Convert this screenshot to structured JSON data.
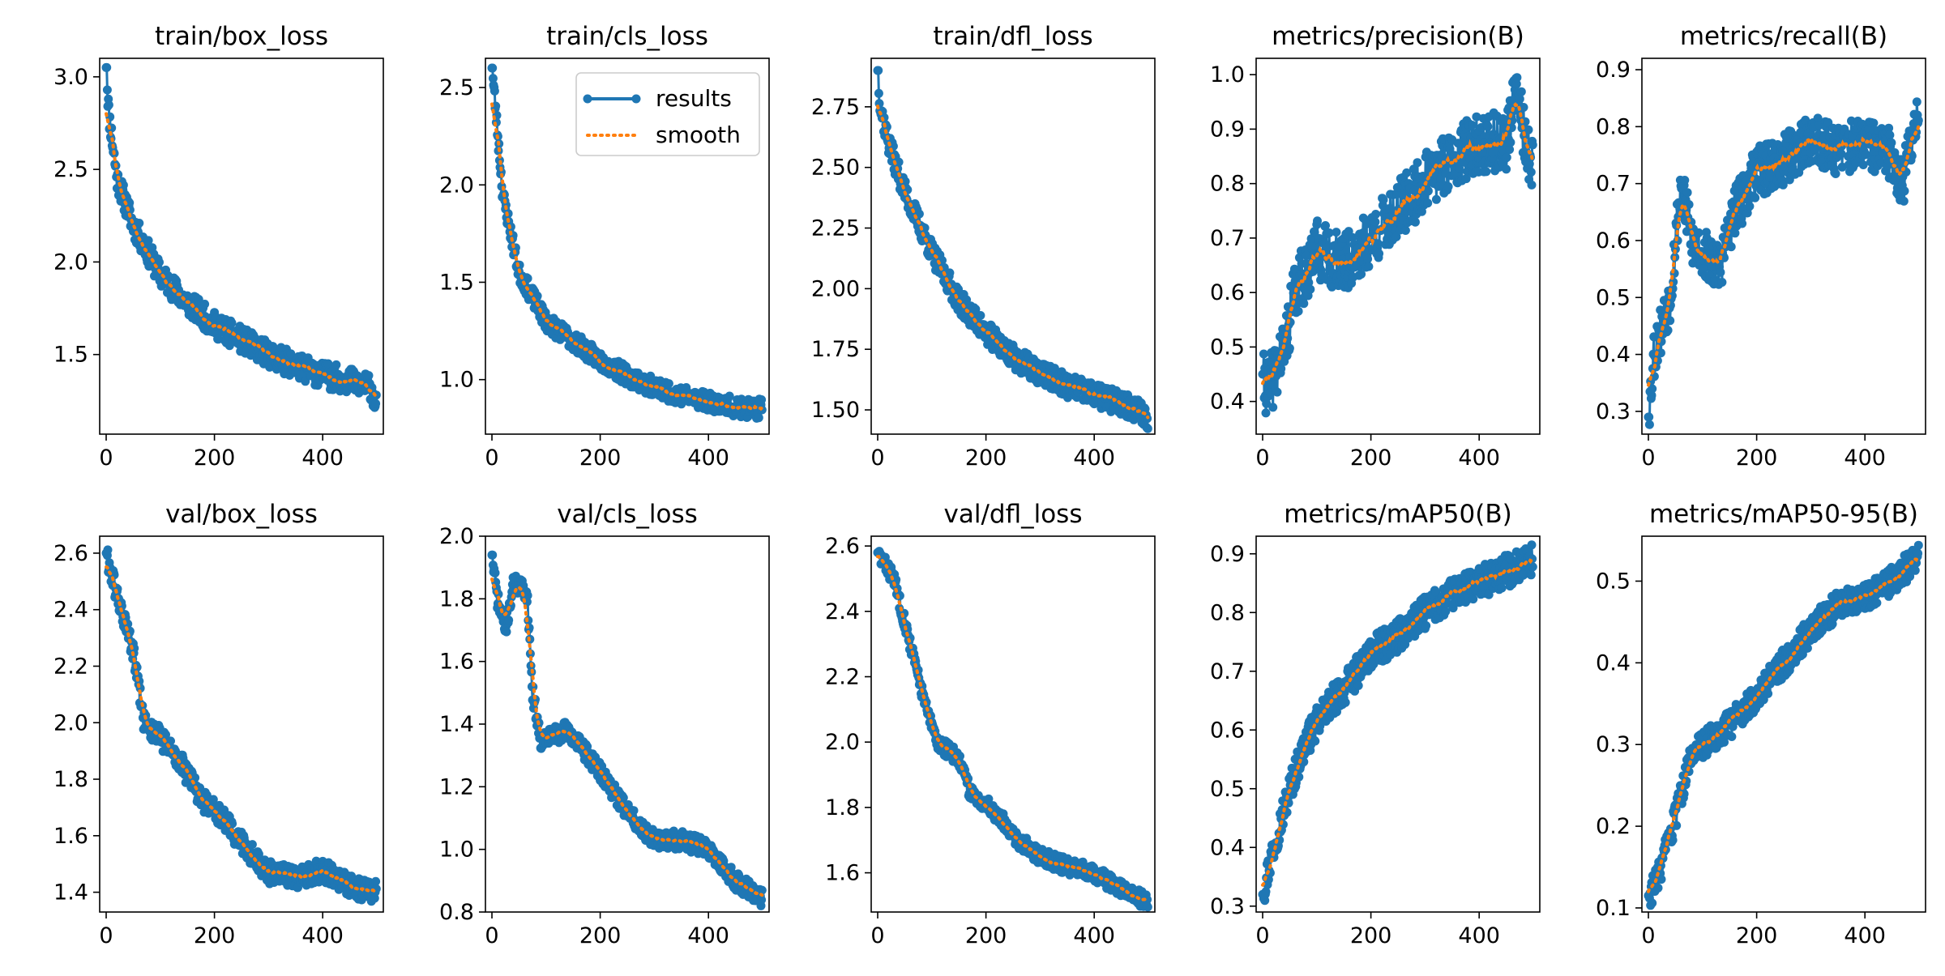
{
  "chart_data": [
    {
      "type": "line",
      "title": "train/box_loss",
      "xlim": [
        -12,
        512
      ],
      "ylim": [
        1.07,
        3.1
      ],
      "xticks": [
        0,
        200,
        400
      ],
      "yticks": [
        1.5,
        2.0,
        2.5,
        3.0
      ],
      "ytick_decimals": 1,
      "anchors": [
        [
          0,
          3.05
        ],
        [
          5,
          2.8
        ],
        [
          20,
          2.45
        ],
        [
          50,
          2.2
        ],
        [
          100,
          1.93
        ],
        [
          150,
          1.78
        ],
        [
          200,
          1.66
        ],
        [
          250,
          1.58
        ],
        [
          300,
          1.5
        ],
        [
          350,
          1.44
        ],
        [
          400,
          1.39
        ],
        [
          450,
          1.36
        ],
        [
          490,
          1.32
        ],
        [
          499,
          1.22
        ]
      ],
      "noise": 0.07,
      "seed": 11,
      "series": [
        {
          "name": "results",
          "color": "#1f77b4"
        },
        {
          "name": "smooth",
          "color": "#ff7f0e"
        }
      ]
    },
    {
      "type": "line",
      "title": "train/cls_loss",
      "xlim": [
        -12,
        512
      ],
      "ylim": [
        0.72,
        2.65
      ],
      "xticks": [
        0,
        200,
        400
      ],
      "yticks": [
        1.0,
        1.5,
        2.0,
        2.5
      ],
      "ytick_decimals": 1,
      "anchors": [
        [
          0,
          2.6
        ],
        [
          5,
          2.45
        ],
        [
          20,
          1.95
        ],
        [
          50,
          1.55
        ],
        [
          100,
          1.3
        ],
        [
          150,
          1.2
        ],
        [
          200,
          1.1
        ],
        [
          250,
          1.02
        ],
        [
          300,
          0.96
        ],
        [
          350,
          0.92
        ],
        [
          400,
          0.89
        ],
        [
          450,
          0.86
        ],
        [
          490,
          0.84
        ],
        [
          499,
          0.88
        ]
      ],
      "noise": 0.05,
      "seed": 23,
      "series": [
        {
          "name": "results",
          "color": "#1f77b4"
        },
        {
          "name": "smooth",
          "color": "#ff7f0e"
        }
      ]
    },
    {
      "type": "line",
      "title": "train/dfl_loss",
      "xlim": [
        -12,
        512
      ],
      "ylim": [
        1.4,
        2.95
      ],
      "xticks": [
        0,
        200,
        400
      ],
      "yticks": [
        1.5,
        1.75,
        2.0,
        2.25,
        2.5,
        2.75
      ],
      "ytick_decimals": 2,
      "anchors": [
        [
          0,
          2.9
        ],
        [
          5,
          2.75
        ],
        [
          20,
          2.6
        ],
        [
          50,
          2.4
        ],
        [
          100,
          2.15
        ],
        [
          150,
          1.95
        ],
        [
          200,
          1.82
        ],
        [
          250,
          1.72
        ],
        [
          300,
          1.65
        ],
        [
          350,
          1.6
        ],
        [
          400,
          1.56
        ],
        [
          450,
          1.53
        ],
        [
          490,
          1.49
        ],
        [
          499,
          1.45
        ]
      ],
      "noise": 0.05,
      "seed": 37,
      "series": [
        {
          "name": "results",
          "color": "#1f77b4"
        },
        {
          "name": "smooth",
          "color": "#ff7f0e"
        }
      ]
    },
    {
      "type": "line",
      "title": "metrics/precision(B)",
      "xlim": [
        -12,
        512
      ],
      "ylim": [
        0.34,
        1.03
      ],
      "xticks": [
        0,
        200,
        400
      ],
      "yticks": [
        0.4,
        0.5,
        0.6,
        0.7,
        0.8,
        0.9,
        1.0
      ],
      "ytick_decimals": 1,
      "anchors": [
        [
          0,
          0.45
        ],
        [
          10,
          0.42
        ],
        [
          40,
          0.5
        ],
        [
          60,
          0.6
        ],
        [
          100,
          0.68
        ],
        [
          150,
          0.65
        ],
        [
          200,
          0.7
        ],
        [
          250,
          0.75
        ],
        [
          300,
          0.8
        ],
        [
          350,
          0.85
        ],
        [
          400,
          0.87
        ],
        [
          450,
          0.88
        ],
        [
          470,
          0.97
        ],
        [
          490,
          0.85
        ],
        [
          499,
          0.82
        ]
      ],
      "noise": 0.055,
      "seed": 41,
      "series": [
        {
          "name": "results",
          "color": "#1f77b4"
        },
        {
          "name": "smooth",
          "color": "#ff7f0e"
        }
      ]
    },
    {
      "type": "line",
      "title": "metrics/recall(B)",
      "xlim": [
        -12,
        512
      ],
      "ylim": [
        0.26,
        0.92
      ],
      "xticks": [
        0,
        200,
        400
      ],
      "yticks": [
        0.3,
        0.4,
        0.5,
        0.6,
        0.7,
        0.8,
        0.9
      ],
      "ytick_decimals": 1,
      "anchors": [
        [
          0,
          0.29
        ],
        [
          10,
          0.4
        ],
        [
          40,
          0.5
        ],
        [
          60,
          0.7
        ],
        [
          80,
          0.6
        ],
        [
          130,
          0.55
        ],
        [
          160,
          0.65
        ],
        [
          200,
          0.72
        ],
        [
          250,
          0.74
        ],
        [
          300,
          0.78
        ],
        [
          350,
          0.76
        ],
        [
          400,
          0.77
        ],
        [
          450,
          0.75
        ],
        [
          470,
          0.7
        ],
        [
          499,
          0.84
        ]
      ],
      "noise": 0.045,
      "seed": 53,
      "series": [
        {
          "name": "results",
          "color": "#1f77b4"
        },
        {
          "name": "smooth",
          "color": "#ff7f0e"
        }
      ]
    },
    {
      "type": "line",
      "title": "val/box_loss",
      "xlim": [
        -12,
        512
      ],
      "ylim": [
        1.33,
        2.66
      ],
      "xticks": [
        0,
        200,
        400
      ],
      "yticks": [
        1.4,
        1.6,
        1.8,
        2.0,
        2.2,
        2.4,
        2.6
      ],
      "ytick_decimals": 1,
      "anchors": [
        [
          0,
          2.6
        ],
        [
          20,
          2.45
        ],
        [
          50,
          2.25
        ],
        [
          70,
          2.0
        ],
        [
          100,
          1.95
        ],
        [
          140,
          1.85
        ],
        [
          180,
          1.72
        ],
        [
          220,
          1.65
        ],
        [
          260,
          1.55
        ],
        [
          300,
          1.47
        ],
        [
          350,
          1.45
        ],
        [
          400,
          1.48
        ],
        [
          450,
          1.42
        ],
        [
          499,
          1.4
        ]
      ],
      "noise": 0.04,
      "seed": 61,
      "series": [
        {
          "name": "results",
          "color": "#1f77b4"
        },
        {
          "name": "smooth",
          "color": "#ff7f0e"
        }
      ]
    },
    {
      "type": "line",
      "title": "val/cls_loss",
      "xlim": [
        -12,
        512
      ],
      "ylim": [
        0.8,
        2.0
      ],
      "xticks": [
        0,
        200,
        400
      ],
      "yticks": [
        0.8,
        1.0,
        1.2,
        1.4,
        1.6,
        1.8,
        2.0
      ],
      "ytick_decimals": 1,
      "anchors": [
        [
          0,
          1.94
        ],
        [
          10,
          1.8
        ],
        [
          25,
          1.7
        ],
        [
          40,
          1.85
        ],
        [
          65,
          1.82
        ],
        [
          75,
          1.5
        ],
        [
          90,
          1.35
        ],
        [
          140,
          1.38
        ],
        [
          200,
          1.25
        ],
        [
          250,
          1.12
        ],
        [
          300,
          1.03
        ],
        [
          350,
          1.03
        ],
        [
          400,
          1.0
        ],
        [
          450,
          0.9
        ],
        [
          499,
          0.84
        ]
      ],
      "noise": 0.03,
      "seed": 71,
      "series": [
        {
          "name": "results",
          "color": "#1f77b4"
        },
        {
          "name": "smooth",
          "color": "#ff7f0e"
        }
      ]
    },
    {
      "type": "line",
      "title": "val/dfl_loss",
      "xlim": [
        -12,
        512
      ],
      "ylim": [
        1.48,
        2.63
      ],
      "xticks": [
        0,
        200,
        400
      ],
      "yticks": [
        1.6,
        1.8,
        2.0,
        2.2,
        2.4,
        2.6
      ],
      "ytick_decimals": 1,
      "anchors": [
        [
          0,
          2.58
        ],
        [
          30,
          2.5
        ],
        [
          60,
          2.3
        ],
        [
          90,
          2.1
        ],
        [
          110,
          2.0
        ],
        [
          150,
          1.95
        ],
        [
          170,
          1.85
        ],
        [
          220,
          1.78
        ],
        [
          260,
          1.7
        ],
        [
          300,
          1.65
        ],
        [
          350,
          1.62
        ],
        [
          400,
          1.6
        ],
        [
          450,
          1.55
        ],
        [
          499,
          1.51
        ]
      ],
      "noise": 0.025,
      "seed": 83,
      "series": [
        {
          "name": "results",
          "color": "#1f77b4"
        },
        {
          "name": "smooth",
          "color": "#ff7f0e"
        }
      ]
    },
    {
      "type": "line",
      "title": "metrics/mAP50(B)",
      "xlim": [
        -12,
        512
      ],
      "ylim": [
        0.29,
        0.93
      ],
      "xticks": [
        0,
        200,
        400
      ],
      "yticks": [
        0.3,
        0.4,
        0.5,
        0.6,
        0.7,
        0.8,
        0.9
      ],
      "ytick_decimals": 1,
      "anchors": [
        [
          0,
          0.32
        ],
        [
          20,
          0.4
        ],
        [
          50,
          0.5
        ],
        [
          80,
          0.58
        ],
        [
          120,
          0.64
        ],
        [
          160,
          0.68
        ],
        [
          200,
          0.73
        ],
        [
          250,
          0.76
        ],
        [
          300,
          0.8
        ],
        [
          350,
          0.83
        ],
        [
          400,
          0.85
        ],
        [
          450,
          0.87
        ],
        [
          499,
          0.89
        ]
      ],
      "noise": 0.028,
      "seed": 97,
      "series": [
        {
          "name": "results",
          "color": "#1f77b4"
        },
        {
          "name": "smooth",
          "color": "#ff7f0e"
        }
      ]
    },
    {
      "type": "line",
      "title": "metrics/mAP50-95(B)",
      "xlim": [
        -12,
        512
      ],
      "ylim": [
        0.095,
        0.555
      ],
      "xticks": [
        0,
        200,
        400
      ],
      "yticks": [
        0.1,
        0.2,
        0.3,
        0.4,
        0.5
      ],
      "ytick_decimals": 1,
      "anchors": [
        [
          0,
          0.115
        ],
        [
          20,
          0.14
        ],
        [
          50,
          0.21
        ],
        [
          80,
          0.29
        ],
        [
          120,
          0.31
        ],
        [
          160,
          0.33
        ],
        [
          200,
          0.36
        ],
        [
          250,
          0.4
        ],
        [
          300,
          0.44
        ],
        [
          350,
          0.47
        ],
        [
          400,
          0.48
        ],
        [
          450,
          0.5
        ],
        [
          499,
          0.53
        ]
      ],
      "noise": 0.018,
      "seed": 103,
      "series": [
        {
          "name": "results",
          "color": "#1f77b4"
        },
        {
          "name": "smooth",
          "color": "#ff7f0e"
        }
      ]
    }
  ],
  "legend": {
    "panel": 1,
    "entries": [
      {
        "label": "results",
        "color": "#1f77b4",
        "style": "solid-marker"
      },
      {
        "label": "smooth",
        "color": "#ff7f0e",
        "style": "dotted"
      }
    ]
  }
}
